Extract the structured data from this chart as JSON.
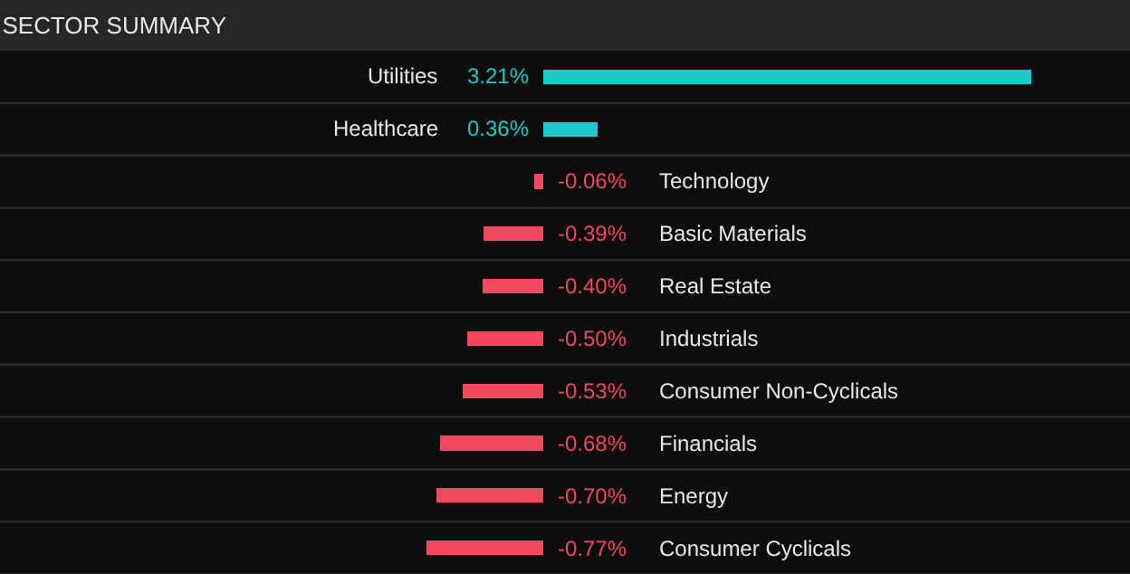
{
  "chart_data": {
    "type": "bar",
    "orientation": "horizontal",
    "title": "SECTOR SUMMARY",
    "categories": [
      "Utilities",
      "Healthcare",
      "Technology",
      "Basic Materials",
      "Real Estate",
      "Industrials",
      "Consumer Non-Cyclicals",
      "Financials",
      "Energy",
      "Consumer Cyclicals"
    ],
    "values": [
      3.21,
      0.36,
      -0.06,
      -0.39,
      -0.4,
      -0.5,
      -0.53,
      -0.68,
      -0.7,
      -0.77
    ],
    "value_labels": [
      "3.21%",
      "0.36%",
      "-0.06%",
      "-0.39%",
      "-0.40%",
      "-0.50%",
      "-0.53%",
      "-0.68%",
      "-0.70%",
      "-0.77%"
    ],
    "colors": [
      "#1ec8c8",
      "#1ec8c8",
      "#f2475c",
      "#f2475c",
      "#f2475c",
      "#f2475c",
      "#f2475c",
      "#f2475c",
      "#f2475c",
      "#f2475c"
    ],
    "legend": false
  }
}
